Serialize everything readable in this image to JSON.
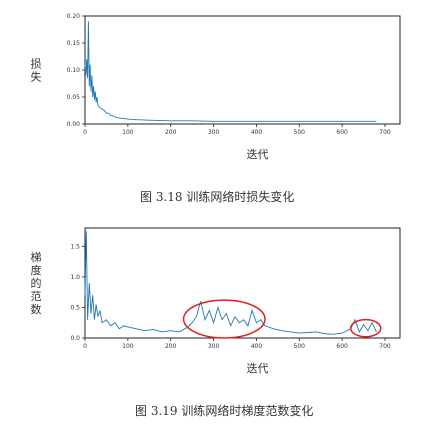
{
  "chart_data": [
    {
      "type": "line",
      "caption": "图 3.18   训练网络时损失变化",
      "xlabel": "迭代",
      "ylabel": "损失",
      "xlim": [
        0,
        700
      ],
      "ylim": [
        0,
        0.2
      ],
      "xticks": [
        "0",
        "100",
        "200",
        "300",
        "400",
        "500",
        "600",
        "700"
      ],
      "yticks": [
        "0.00",
        "0.05",
        "0.10",
        "0.15",
        "0.20"
      ],
      "grid": false,
      "series": [
        {
          "color": "#1f77b4",
          "x": [
            0,
            2,
            4,
            6,
            8,
            10,
            12,
            14,
            16,
            18,
            20,
            22,
            24,
            26,
            28,
            30,
            35,
            40,
            45,
            50,
            55,
            60,
            65,
            70,
            80,
            90,
            100,
            120,
            150,
            200,
            250,
            300,
            400,
            500,
            600,
            680
          ],
          "y": [
            0.11,
            0.09,
            0.12,
            0.085,
            0.19,
            0.07,
            0.11,
            0.06,
            0.09,
            0.05,
            0.07,
            0.045,
            0.06,
            0.04,
            0.05,
            0.035,
            0.03,
            0.028,
            0.025,
            0.02,
            0.02,
            0.016,
            0.015,
            0.013,
            0.011,
            0.01,
            0.009,
            0.008,
            0.007,
            0.006,
            0.006,
            0.005,
            0.005,
            0.005,
            0.005,
            0.005
          ]
        }
      ]
    },
    {
      "type": "line",
      "caption": "图 3.19   训练网络时梯度范数变化",
      "xlabel": "迭代",
      "ylabel": "梯度的范数",
      "xlim": [
        0,
        700
      ],
      "ylim": [
        0,
        1.8
      ],
      "xticks": [
        "0",
        "100",
        "200",
        "300",
        "400",
        "500",
        "600",
        "700"
      ],
      "yticks": [
        "0.0",
        "0.5",
        "1.0",
        "1.5"
      ],
      "grid": false,
      "annotations": [
        {
          "shape": "ellipse",
          "color": "#e0201e",
          "x_range": [
            230,
            420
          ],
          "y_range": [
            0.0,
            0.62
          ]
        },
        {
          "shape": "ellipse",
          "color": "#e0201e",
          "x_range": [
            620,
            690
          ],
          "y_range": [
            0.02,
            0.3
          ]
        }
      ],
      "series": [
        {
          "color": "#1f77b4",
          "x": [
            0,
            3,
            6,
            10,
            14,
            18,
            22,
            26,
            30,
            35,
            40,
            50,
            60,
            70,
            80,
            90,
            100,
            120,
            140,
            160,
            180,
            200,
            220,
            240,
            250,
            260,
            270,
            280,
            290,
            300,
            310,
            320,
            330,
            340,
            350,
            360,
            370,
            380,
            390,
            400,
            410,
            420,
            440,
            460,
            480,
            500,
            520,
            540,
            560,
            580,
            600,
            620,
            630,
            640,
            650,
            660,
            670,
            680
          ],
          "y": [
            0.7,
            1.75,
            0.3,
            0.9,
            0.4,
            0.7,
            0.3,
            0.55,
            0.35,
            0.45,
            0.25,
            0.3,
            0.2,
            0.25,
            0.15,
            0.2,
            0.18,
            0.15,
            0.12,
            0.14,
            0.1,
            0.12,
            0.1,
            0.18,
            0.25,
            0.35,
            0.6,
            0.3,
            0.45,
            0.25,
            0.5,
            0.3,
            0.4,
            0.2,
            0.35,
            0.25,
            0.3,
            0.2,
            0.45,
            0.25,
            0.3,
            0.2,
            0.15,
            0.12,
            0.1,
            0.08,
            0.09,
            0.1,
            0.07,
            0.06,
            0.08,
            0.15,
            0.3,
            0.1,
            0.22,
            0.12,
            0.25,
            0.1
          ]
        }
      ]
    }
  ]
}
